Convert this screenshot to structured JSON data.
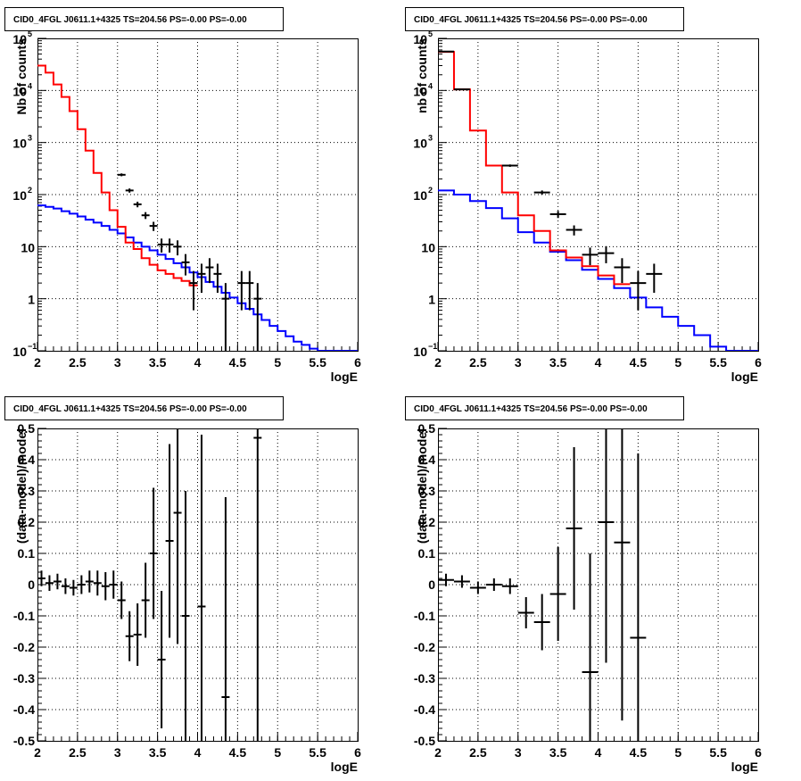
{
  "chart_data": [
    {
      "type": "step",
      "title": "CID0_4FGL J0611.1+4325 TS=204.56 PS=-0.00 PS=-0.00",
      "xlabel": "logE",
      "ylabel": "Nb of counts",
      "xlim": [
        2,
        6
      ],
      "ylim": [
        0.1,
        100000
      ],
      "ylog": true,
      "grid": true,
      "xticks": [
        "2",
        "2.5",
        "3",
        "3.5",
        "4",
        "4.5",
        "5",
        "5.5",
        "6"
      ],
      "yticks": [
        {
          "v": 0.1,
          "base": "10",
          "sup": "−1"
        },
        {
          "v": 1,
          "base": "1",
          "sup": ""
        },
        {
          "v": 10,
          "base": "10",
          "sup": ""
        },
        {
          "v": 100,
          "base": "10",
          "sup": "2"
        },
        {
          "v": 1000,
          "base": "10",
          "sup": "3"
        },
        {
          "v": 10000,
          "base": "10",
          "sup": "4"
        },
        {
          "v": 100000,
          "base": "10",
          "sup": "5"
        }
      ],
      "binwidth": 0.1,
      "red_model": {
        "color": "#ff0000",
        "x0": 2.0,
        "values": [
          30000,
          22000,
          13000,
          7500,
          4000,
          1800,
          700,
          260,
          110,
          50,
          24,
          12,
          9,
          6,
          4.5,
          3.5,
          3.0,
          2.5,
          2.2,
          1.8
        ]
      },
      "blue_model": {
        "color": "#0000ff",
        "x0": 2.0,
        "values": [
          62,
          58,
          54,
          48,
          43,
          38,
          33,
          29,
          25,
          21,
          18,
          15,
          12,
          10,
          8.5,
          7,
          5.8,
          4.8,
          4,
          3.2,
          2.6,
          2.1,
          1.7,
          1.3,
          1.05,
          0.82,
          0.64,
          0.5,
          0.39,
          0.3,
          0.24,
          0.19,
          0.15,
          0.13,
          0.11,
          0.1,
          0.1,
          0.1,
          0.1,
          0.1
        ]
      },
      "data_points": [
        {
          "x": 3.05,
          "y": 240,
          "err": 15
        },
        {
          "x": 3.15,
          "y": 120,
          "err": 11
        },
        {
          "x": 3.25,
          "y": 65,
          "err": 8
        },
        {
          "x": 3.35,
          "y": 40,
          "err": 6
        },
        {
          "x": 3.45,
          "y": 25,
          "err": 5
        },
        {
          "x": 3.55,
          "y": 11,
          "err": 3.3
        },
        {
          "x": 3.65,
          "y": 11,
          "err": 3.3
        },
        {
          "x": 3.75,
          "y": 10,
          "err": 3.2
        },
        {
          "x": 3.85,
          "y": 5,
          "err": 2.2
        },
        {
          "x": 3.95,
          "y": 2,
          "err": 1.4
        },
        {
          "x": 4.05,
          "y": 3,
          "err": 1.7
        },
        {
          "x": 4.15,
          "y": 4,
          "err": 2
        },
        {
          "x": 4.25,
          "y": 3,
          "err": 1.7
        },
        {
          "x": 4.35,
          "y": 1,
          "err": 1
        },
        {
          "x": 4.55,
          "y": 2,
          "err": 1.4
        },
        {
          "x": 4.65,
          "y": 2,
          "err": 1.4
        },
        {
          "x": 4.75,
          "y": 1,
          "err": 1
        }
      ]
    },
    {
      "type": "step",
      "title": "CID0_4FGL J0611.1+4325 TS=204.56 PS=-0.00 PS=-0.00",
      "xlabel": "logE",
      "ylabel": "nb of counts",
      "xlim": [
        2,
        6
      ],
      "ylim": [
        0.1,
        100000
      ],
      "ylog": true,
      "grid": true,
      "xticks": [
        "2",
        "2.5",
        "3",
        "3.5",
        "4",
        "4.5",
        "5",
        "5.5",
        "6"
      ],
      "yticks": [
        {
          "v": 0.1,
          "base": "10",
          "sup": "−1"
        },
        {
          "v": 1,
          "base": "1",
          "sup": ""
        },
        {
          "v": 10,
          "base": "10",
          "sup": ""
        },
        {
          "v": 100,
          "base": "10",
          "sup": "2"
        },
        {
          "v": 1000,
          "base": "10",
          "sup": "3"
        },
        {
          "v": 10000,
          "base": "10",
          "sup": "4"
        },
        {
          "v": 100000,
          "base": "10",
          "sup": "5"
        }
      ],
      "binwidth": 0.2,
      "red_model": {
        "color": "#ff0000",
        "x0": 2.0,
        "values": [
          55000,
          10500,
          1700,
          360,
          110,
          40,
          20,
          8.5,
          6.2,
          4.2,
          2.8,
          1.9
        ]
      },
      "blue_model": {
        "color": "#0000ff",
        "x0": 2.0,
        "values": [
          120,
          100,
          75,
          55,
          35,
          19,
          12,
          8,
          5.5,
          3.6,
          2.4,
          1.6,
          1.05,
          0.68,
          0.45,
          0.3,
          0.2,
          0.12,
          0.1,
          0.1
        ]
      },
      "data_points": [
        {
          "x": 2.1,
          "y": 56000,
          "err": 240
        },
        {
          "x": 2.3,
          "y": 10500,
          "err": 100
        },
        {
          "x": 2.9,
          "y": 360,
          "err": 19
        },
        {
          "x": 3.3,
          "y": 110,
          "err": 10
        },
        {
          "x": 3.5,
          "y": 42,
          "err": 6.5
        },
        {
          "x": 3.7,
          "y": 21,
          "err": 4.6
        },
        {
          "x": 3.9,
          "y": 7,
          "err": 2.6
        },
        {
          "x": 4.1,
          "y": 7.5,
          "err": 2.7
        },
        {
          "x": 4.3,
          "y": 4,
          "err": 2
        },
        {
          "x": 4.5,
          "y": 2,
          "err": 1.4
        },
        {
          "x": 4.7,
          "y": 3,
          "err": 1.7
        }
      ]
    },
    {
      "type": "scatter",
      "title": "CID0_4FGL J0611.1+4325 TS=204.56 PS=-0.00 PS=-0.00",
      "xlabel": "logE",
      "ylabel": "(data-model)/model",
      "xlim": [
        2,
        6
      ],
      "ylim": [
        -0.5,
        0.5
      ],
      "grid": true,
      "xticks": [
        "2",
        "2.5",
        "3",
        "3.5",
        "4",
        "4.5",
        "5",
        "5.5",
        "6"
      ],
      "yticks": [
        "-0.5",
        "-0.4",
        "-0.3",
        "-0.2",
        "-0.1",
        "0",
        "0.1",
        "0.2",
        "0.3",
        "0.4",
        "0.5"
      ],
      "xerr": 0.05,
      "points": [
        {
          "x": 2.05,
          "y": 0.02,
          "err": 0.025
        },
        {
          "x": 2.15,
          "y": 0.005,
          "err": 0.025
        },
        {
          "x": 2.25,
          "y": 0.01,
          "err": 0.025
        },
        {
          "x": 2.35,
          "y": -0.005,
          "err": 0.025
        },
        {
          "x": 2.45,
          "y": -0.01,
          "err": 0.025
        },
        {
          "x": 2.55,
          "y": 0.0,
          "err": 0.03
        },
        {
          "x": 2.65,
          "y": 0.01,
          "err": 0.035
        },
        {
          "x": 2.75,
          "y": 0.005,
          "err": 0.04
        },
        {
          "x": 2.85,
          "y": -0.005,
          "err": 0.045
        },
        {
          "x": 2.95,
          "y": 0.0,
          "err": 0.045
        },
        {
          "x": 3.05,
          "y": -0.05,
          "err": 0.06
        },
        {
          "x": 3.15,
          "y": -0.165,
          "err": 0.08
        },
        {
          "x": 3.25,
          "y": -0.16,
          "err": 0.1
        },
        {
          "x": 3.35,
          "y": -0.05,
          "err": 0.12
        },
        {
          "x": 3.45,
          "y": 0.1,
          "err": 0.21
        },
        {
          "x": 3.55,
          "y": -0.24,
          "err": 0.22
        },
        {
          "x": 3.65,
          "y": 0.14,
          "err": 0.31
        },
        {
          "x": 3.75,
          "y": 0.23,
          "err": 0.42
        },
        {
          "x": 3.85,
          "y": -0.1,
          "err": 0.4
        },
        {
          "x": 4.05,
          "y": -0.07,
          "err": 0.55
        },
        {
          "x": 4.35,
          "y": -0.36,
          "err": 0.64
        },
        {
          "x": 4.75,
          "y": 0.47,
          "err": 1.0
        }
      ]
    },
    {
      "type": "scatter",
      "title": "CID0_4FGL J0611.1+4325 TS=204.56 PS=-0.00 PS=-0.00",
      "xlabel": "logE",
      "ylabel": "(data-model)/model",
      "xlim": [
        2,
        6
      ],
      "ylim": [
        -0.5,
        0.5
      ],
      "grid": true,
      "xticks": [
        "2",
        "2.5",
        "3",
        "3.5",
        "4",
        "4.5",
        "5",
        "5.5",
        "6"
      ],
      "yticks": [
        "-0.5",
        "-0.4",
        "-0.3",
        "-0.2",
        "-0.1",
        "0",
        "0.1",
        "0.2",
        "0.3",
        "0.4",
        "0.5"
      ],
      "xerr": 0.1,
      "points": [
        {
          "x": 2.1,
          "y": 0.015,
          "err": 0.02
        },
        {
          "x": 2.3,
          "y": 0.01,
          "err": 0.02
        },
        {
          "x": 2.5,
          "y": -0.01,
          "err": 0.02
        },
        {
          "x": 2.7,
          "y": 0.0,
          "err": 0.02
        },
        {
          "x": 2.9,
          "y": -0.005,
          "err": 0.025
        },
        {
          "x": 3.1,
          "y": -0.09,
          "err": 0.05
        },
        {
          "x": 3.3,
          "y": -0.12,
          "err": 0.09
        },
        {
          "x": 3.5,
          "y": -0.03,
          "err": 0.15
        },
        {
          "x": 3.7,
          "y": 0.18,
          "err": 0.26
        },
        {
          "x": 3.9,
          "y": -0.28,
          "err": 0.38
        },
        {
          "x": 4.1,
          "y": 0.2,
          "err": 0.45
        },
        {
          "x": 4.3,
          "y": 0.135,
          "err": 0.57
        },
        {
          "x": 4.5,
          "y": -0.17,
          "err": 0.59
        }
      ]
    }
  ]
}
